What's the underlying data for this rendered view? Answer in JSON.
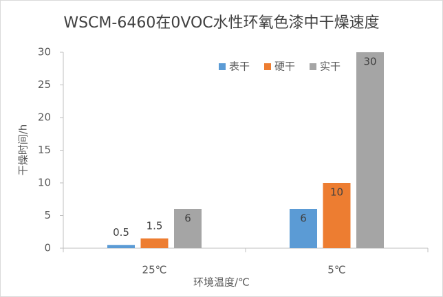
{
  "chart_data": {
    "type": "bar",
    "title": "WSCM-6460在0VOC水性环氧色漆中干燥速度",
    "x_label": "环境温度/℃",
    "y_label": "干燥时间/h",
    "categories": [
      "25℃",
      "5℃"
    ],
    "series": [
      {
        "name": "表干",
        "color": "#5b9bd5",
        "values": [
          0.5,
          6
        ]
      },
      {
        "name": "硬干",
        "color": "#ed7d31",
        "values": [
          1.5,
          10
        ]
      },
      {
        "name": "实干",
        "color": "#a5a5a5",
        "values": [
          6,
          30
        ]
      }
    ],
    "ylim": [
      0,
      30
    ],
    "yticks": [
      0,
      5,
      10,
      15,
      20,
      25,
      30
    ],
    "grid": false,
    "legend": "top-right",
    "data_labels": true
  }
}
